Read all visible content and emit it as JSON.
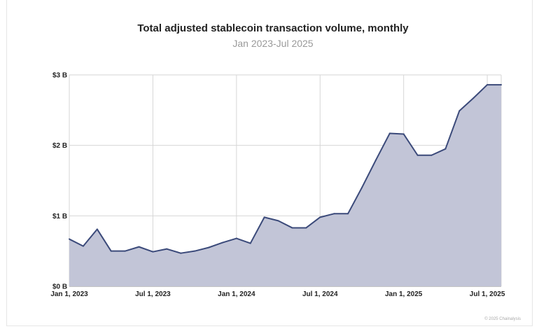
{
  "chart_data": {
    "type": "area",
    "title": "Total adjusted stablecoin transaction volume, monthly",
    "subtitle": "Jan 2023-Jul 2025",
    "xlabel": "",
    "ylabel": "",
    "x": [
      "2023-01",
      "2023-02",
      "2023-03",
      "2023-04",
      "2023-05",
      "2023-06",
      "2023-07",
      "2023-08",
      "2023-09",
      "2023-10",
      "2023-11",
      "2023-12",
      "2024-01",
      "2024-02",
      "2024-03",
      "2024-04",
      "2024-05",
      "2024-06",
      "2024-07",
      "2024-08",
      "2024-09",
      "2024-10",
      "2024-11",
      "2024-12",
      "2025-01",
      "2025-02",
      "2025-03",
      "2025-04",
      "2025-05",
      "2025-06",
      "2025-07",
      "2025-08"
    ],
    "series": [
      {
        "values": [
          0.67,
          0.57,
          0.81,
          0.5,
          0.5,
          0.56,
          0.49,
          0.53,
          0.47,
          0.5,
          0.55,
          0.62,
          0.68,
          0.61,
          0.98,
          0.93,
          0.83,
          0.83,
          0.98,
          1.03,
          1.03,
          1.4,
          1.79,
          2.17,
          2.16,
          1.86,
          1.86,
          1.95,
          2.49,
          2.67,
          2.86,
          2.86
        ]
      }
    ],
    "ylim": [
      0,
      3
    ],
    "yticks": [
      0,
      1,
      2,
      3
    ],
    "ytick_labels": [
      "$0 B",
      "$1 B",
      "$2 B",
      "$3 B"
    ],
    "xticks": [
      "2023-01",
      "2023-07",
      "2024-01",
      "2024-07",
      "2025-01",
      "2025-07"
    ],
    "xtick_labels": [
      "Jan 1, 2023",
      "Jul 1, 2023",
      "Jan 1, 2024",
      "Jul 1, 2024",
      "Jan 1, 2025",
      "Jul 1, 2025"
    ],
    "grid": true,
    "colors": {
      "line": "#3b4a7a",
      "fill": "#c2c5d7",
      "grid": "#d6d6d6"
    }
  },
  "footer": {
    "credit": "© 2025 Chainalysis"
  }
}
